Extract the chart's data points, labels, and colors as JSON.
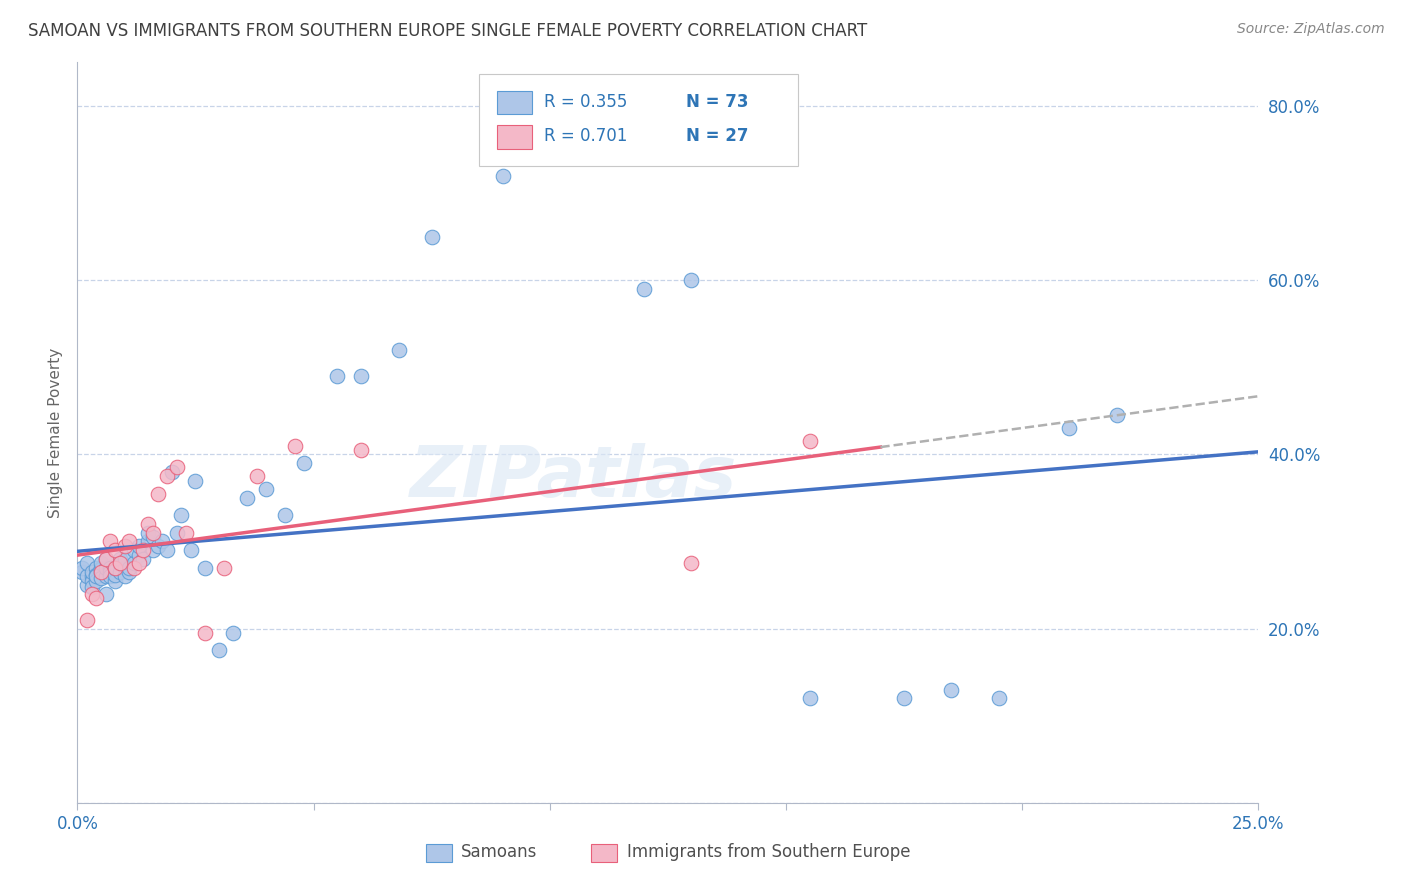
{
  "title": "SAMOAN VS IMMIGRANTS FROM SOUTHERN EUROPE SINGLE FEMALE POVERTY CORRELATION CHART",
  "source": "Source: ZipAtlas.com",
  "ylabel": "Single Female Poverty",
  "xlim": [
    0.0,
    0.25
  ],
  "ylim": [
    0.0,
    0.85
  ],
  "watermark": "ZIPatlas",
  "legend_r1": "R = 0.355",
  "legend_n1": "N = 73",
  "legend_r2": "R = 0.701",
  "legend_n2": "N = 27",
  "color_samoan_fill": "#aec6e8",
  "color_samoan_edge": "#5b9bd5",
  "color_se_fill": "#f4b8c8",
  "color_se_edge": "#e8607a",
  "color_line_samoan": "#4472c4",
  "color_line_se": "#e8607a",
  "color_line_dashed": "#b0b0b0",
  "color_text_blue": "#2e75b6",
  "color_title": "#404040",
  "color_source": "#888888",
  "color_grid": "#c8d4e8",
  "color_axis": "#b0b8c8",
  "background": "#ffffff",
  "samoan_x": [
    0.001,
    0.001,
    0.002,
    0.002,
    0.002,
    0.003,
    0.003,
    0.003,
    0.003,
    0.004,
    0.004,
    0.004,
    0.004,
    0.005,
    0.005,
    0.005,
    0.005,
    0.005,
    0.006,
    0.006,
    0.006,
    0.006,
    0.007,
    0.007,
    0.007,
    0.008,
    0.008,
    0.008,
    0.009,
    0.009,
    0.009,
    0.01,
    0.01,
    0.01,
    0.011,
    0.011,
    0.012,
    0.012,
    0.013,
    0.013,
    0.014,
    0.015,
    0.015,
    0.016,
    0.016,
    0.017,
    0.018,
    0.019,
    0.02,
    0.021,
    0.022,
    0.024,
    0.025,
    0.027,
    0.03,
    0.033,
    0.036,
    0.04,
    0.044,
    0.048,
    0.055,
    0.06,
    0.068,
    0.075,
    0.09,
    0.12,
    0.13,
    0.155,
    0.175,
    0.185,
    0.195,
    0.21,
    0.22
  ],
  "samoan_y": [
    0.265,
    0.27,
    0.25,
    0.26,
    0.275,
    0.26,
    0.255,
    0.248,
    0.265,
    0.27,
    0.262,
    0.255,
    0.26,
    0.27,
    0.265,
    0.268,
    0.258,
    0.275,
    0.24,
    0.26,
    0.27,
    0.28,
    0.27,
    0.265,
    0.26,
    0.255,
    0.262,
    0.27,
    0.275,
    0.28,
    0.265,
    0.27,
    0.28,
    0.26,
    0.265,
    0.27,
    0.275,
    0.29,
    0.285,
    0.295,
    0.28,
    0.3,
    0.31,
    0.305,
    0.29,
    0.295,
    0.3,
    0.29,
    0.38,
    0.31,
    0.33,
    0.29,
    0.37,
    0.27,
    0.175,
    0.195,
    0.35,
    0.36,
    0.33,
    0.39,
    0.49,
    0.49,
    0.52,
    0.65,
    0.72,
    0.59,
    0.6,
    0.12,
    0.12,
    0.13,
    0.12,
    0.43,
    0.445
  ],
  "se_x": [
    0.002,
    0.003,
    0.004,
    0.005,
    0.006,
    0.007,
    0.008,
    0.008,
    0.009,
    0.01,
    0.011,
    0.012,
    0.013,
    0.014,
    0.015,
    0.016,
    0.017,
    0.019,
    0.021,
    0.023,
    0.027,
    0.031,
    0.038,
    0.046,
    0.06,
    0.13,
    0.155
  ],
  "se_y": [
    0.21,
    0.24,
    0.235,
    0.265,
    0.28,
    0.3,
    0.27,
    0.29,
    0.275,
    0.295,
    0.3,
    0.27,
    0.275,
    0.29,
    0.32,
    0.31,
    0.355,
    0.375,
    0.385,
    0.31,
    0.195,
    0.27,
    0.375,
    0.41,
    0.405,
    0.275,
    0.415
  ]
}
